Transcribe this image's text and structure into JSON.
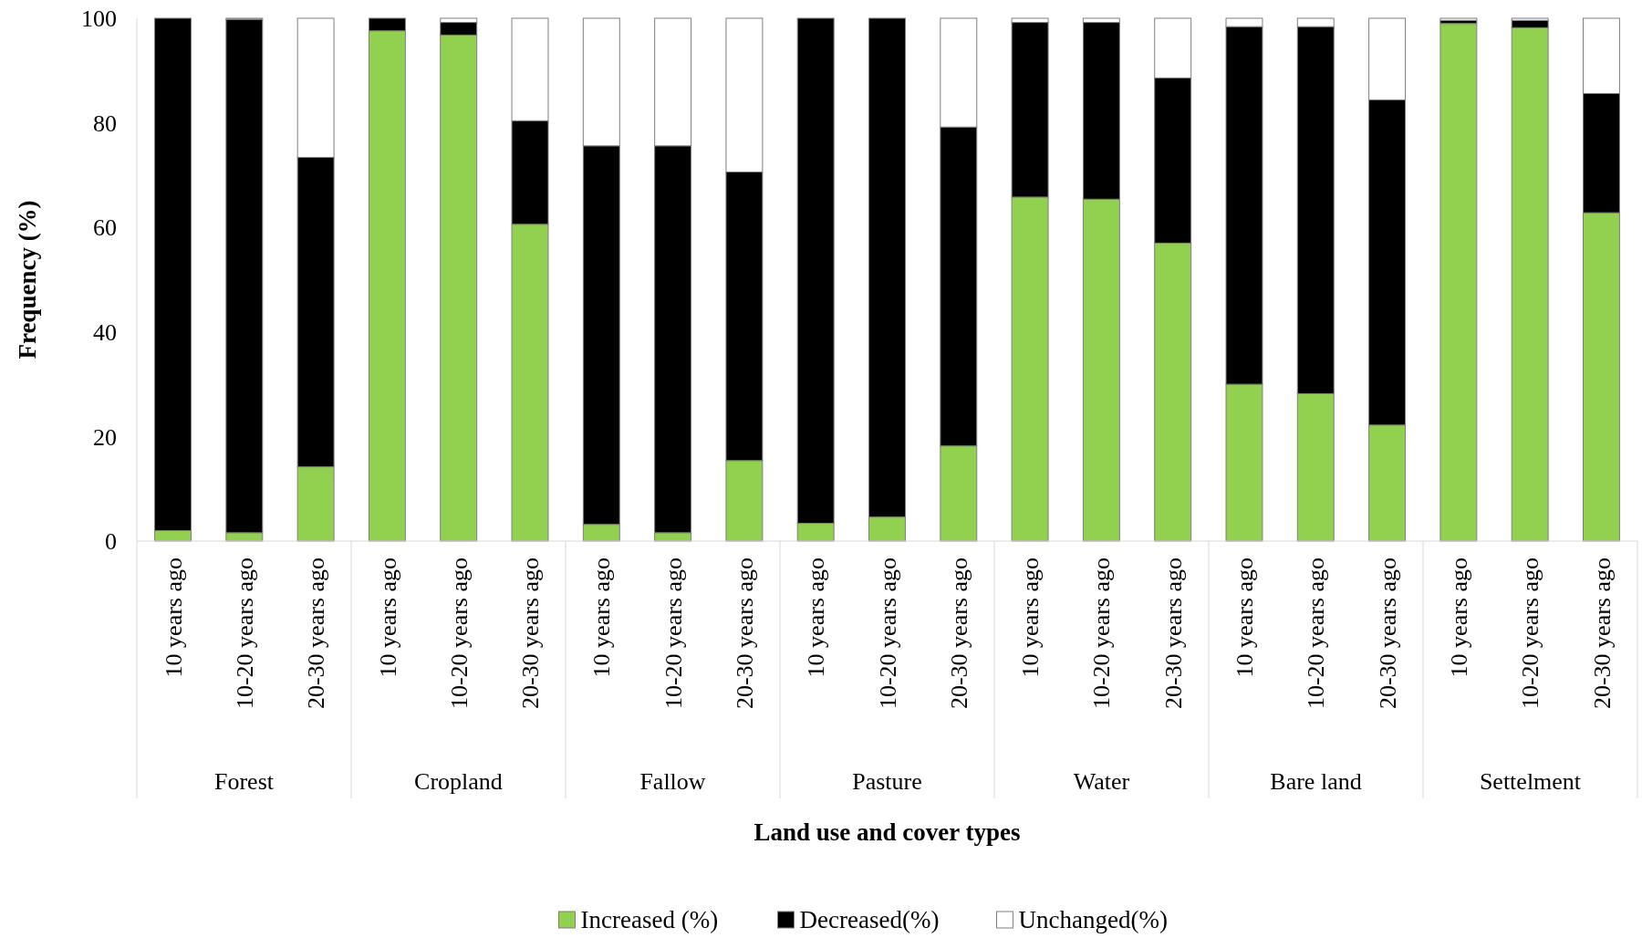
{
  "chart_data": {
    "type": "bar",
    "stacked": true,
    "xlabel": "Land use and cover types",
    "ylabel": "Frequency (%)",
    "categories": [
      "10 years ago",
      "10-20 years ago",
      "20-30 years ago",
      "10 years ago",
      "10-20 years ago",
      "20-30 years ago",
      "10 years ago",
      "10-20 years ago",
      "20-30 years ago",
      "10 years ago",
      "10-20 years ago",
      "20-30 years ago",
      "10 years ago",
      "10-20 years ago",
      "20-30 years ago",
      "10 years ago",
      "10-20 years ago",
      "20-30 years ago",
      "10 years ago",
      "10-20 years ago",
      "20-30 years ago"
    ],
    "annotations": [
      "Forest",
      "Cropland",
      "Fallow",
      "Pasture",
      "Water",
      "Bare land",
      "Settelment"
    ],
    "series": [
      {
        "name": "Increased (%)",
        "color": "#92d050",
        "values": [
          2,
          1.6,
          14.2,
          97.6,
          96.8,
          60.6,
          3.2,
          1.6,
          15.4,
          3.4,
          4.6,
          18.2,
          65.8,
          65.4,
          57,
          30,
          28.2,
          22.2,
          99,
          98.2,
          62.8
        ]
      },
      {
        "name": "Decreased(%)",
        "color": "#000000",
        "values": [
          98,
          98.2,
          59.2,
          2.4,
          2.4,
          19.8,
          72.4,
          74,
          55.2,
          96.6,
          95.4,
          61,
          33.4,
          33.8,
          31.6,
          68.4,
          70.2,
          62.2,
          0.6,
          1.4,
          22.8
        ]
      },
      {
        "name": "Unchanged(%)",
        "color": "#ffffff",
        "values": [
          0,
          0.2,
          26.6,
          0,
          0.8,
          19.6,
          24.4,
          24.4,
          29.4,
          0,
          0,
          20.8,
          0.8,
          0.8,
          11.4,
          1.6,
          1.6,
          15.6,
          0.4,
          0.4,
          14.4
        ]
      }
    ],
    "ylim": [
      0,
      100
    ],
    "yticks": [
      0,
      20,
      40,
      60,
      80,
      100
    ],
    "legend": "bottom"
  }
}
